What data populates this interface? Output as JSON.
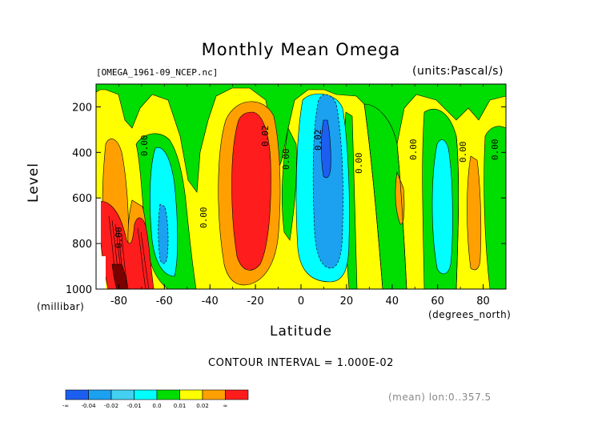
{
  "chart_data": {
    "type": "heatmap",
    "title": "Monthly Mean Omega",
    "source_label": "[OMEGA_1961-09_NCEP.nc]",
    "units_label": "(units:Pascal/s)",
    "xlabel": "Latitude",
    "x_units": "(degrees_north)",
    "ylabel": "Level",
    "y_units": "(millibar)",
    "x_ticks": [
      "-80",
      "-60",
      "-40",
      "-20",
      "0",
      "20",
      "40",
      "60",
      "80"
    ],
    "y_ticks": [
      "200",
      "400",
      "600",
      "800",
      "1000"
    ],
    "xlim": [
      -90,
      90
    ],
    "ylim": [
      1000,
      100
    ],
    "contour_interval": "CONTOUR INTERVAL = 1.000E-02",
    "footnote": "(mean) lon:0..357.5",
    "contour_labels": [
      "0.00",
      "0.00",
      "0.02",
      "0.00",
      "0.02",
      "0.00",
      "0.00",
      "0.00",
      "0.00",
      "0.00"
    ],
    "legend": {
      "labels": [
        "-∞",
        "-0.04",
        "-0.02",
        "-0.01",
        "0.0",
        "0.01",
        "0.02",
        "∞"
      ],
      "colors": [
        "#1c5ff0",
        "#1ca0f0",
        "#44d0f0",
        "#00ffff",
        "#00dd00",
        "#ffff00",
        "#ffa000",
        "#ff1c1c"
      ]
    }
  }
}
